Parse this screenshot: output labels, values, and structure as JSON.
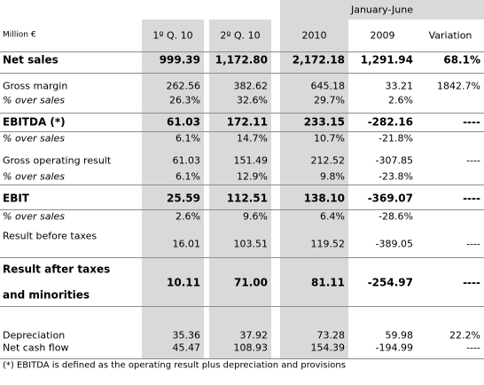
{
  "table": {
    "group_header": "January-June",
    "header": [
      "Million €",
      "1º Q. 10",
      "2º Q. 10",
      "2010",
      "2009",
      "Variation"
    ],
    "rows": [
      {
        "label": "Net sales",
        "cells": [
          "999.39",
          "1,172.80",
          "2,172.18",
          "1,291.94",
          "68.1%"
        ]
      },
      {
        "label": "Gross margin",
        "cells": [
          "262.56",
          "382.62",
          "645.18",
          "33.21",
          "1842.7%"
        ]
      },
      {
        "label": "% over sales",
        "cells": [
          "26.3%",
          "32.6%",
          "29.7%",
          "2.6%",
          ""
        ]
      },
      {
        "label": "EBITDA (*)",
        "cells": [
          "61.03",
          "172.11",
          "233.15",
          "-282.16",
          "----"
        ]
      },
      {
        "label": "% over sales",
        "cells": [
          "6.1%",
          "14.7%",
          "10.7%",
          "-21.8%",
          ""
        ]
      },
      {
        "label": "Gross operating result",
        "cells": [
          "61.03",
          "151.49",
          "212.52",
          "-307.85",
          "----"
        ]
      },
      {
        "label": "% over sales",
        "cells": [
          "6.1%",
          "12.9%",
          "9.8%",
          "-23.8%",
          ""
        ]
      },
      {
        "label": "EBIT",
        "cells": [
          "25.59",
          "112.51",
          "138.10",
          "-369.07",
          "----"
        ]
      },
      {
        "label": "% over sales",
        "cells": [
          "2.6%",
          "9.6%",
          "6.4%",
          "-28.6%",
          ""
        ]
      },
      {
        "label": "Result before taxes",
        "cells": [
          "16.01",
          "103.51",
          "119.52",
          "-389.05",
          "----"
        ]
      },
      {
        "label": [
          "Result after taxes",
          "and minorities"
        ],
        "cells": [
          "10.11",
          "71.00",
          "81.11",
          "-254.97",
          "----"
        ]
      },
      {
        "label": "Depreciation",
        "cells": [
          "35.36",
          "37.92",
          "73.28",
          "59.98",
          "22.2%"
        ]
      },
      {
        "label": "Net cash flow",
        "cells": [
          "45.47",
          "108.93",
          "154.39",
          "-194.99",
          "----"
        ]
      }
    ],
    "footnote": "(*) EBITDA is defined as the operating result plus depreciation and provisions"
  }
}
